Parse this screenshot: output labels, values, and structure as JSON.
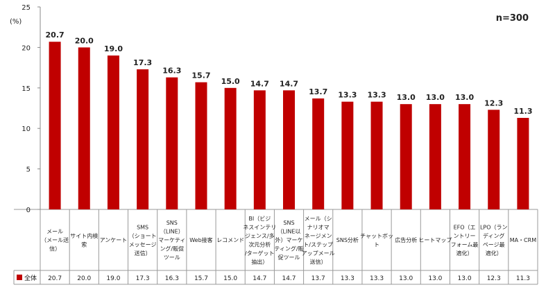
{
  "chart_data": {
    "type": "bar",
    "sample_note": "n=300",
    "y_unit": "(%)",
    "ylim": [
      0,
      25
    ],
    "y_ticks": [
      0,
      5,
      10,
      15,
      20,
      25
    ],
    "grid": false,
    "colors": {
      "bar": "#c00000",
      "axis": "#888888",
      "table_border": "#999999"
    },
    "categories": [
      [
        "メール",
        "（メール送",
        "信）"
      ],
      [
        "サイト内検",
        "索"
      ],
      [
        "アンケート"
      ],
      [
        "SMS",
        "（ショート",
        "メッセージ",
        "送信）"
      ],
      [
        "SNS",
        "（LINE）",
        "マーケティ",
        "ング/販促",
        "ツール"
      ],
      [
        "Web接客"
      ],
      [
        "レコメンド"
      ],
      [
        "BI（ビジ",
        "ネスインテリ",
        "ジェンス/多",
        "次元分析",
        "/ターゲット",
        "抽出）"
      ],
      [
        "SNS",
        "（LINE以",
        "外）マーケ",
        "ティング/販",
        "促ツール"
      ],
      [
        "メール（シ",
        "ナリオマ",
        "ネージメン",
        "ト/ステップ",
        "アップメール",
        "送信）"
      ],
      [
        "SNS分析"
      ],
      [
        "チャットボッ",
        "ト"
      ],
      [
        "広告分析"
      ],
      [
        "ヒートマップ"
      ],
      [
        "EFO（エ",
        "ントリー",
        "フォーム最",
        "適化）"
      ],
      [
        "LPO（ラン",
        "ディング",
        "ページ最",
        "適化）"
      ],
      [
        "MA・CRM"
      ]
    ],
    "series": [
      {
        "name": "全体",
        "values": [
          20.7,
          20.0,
          19.0,
          17.3,
          16.3,
          15.7,
          15.0,
          14.7,
          14.7,
          13.7,
          13.3,
          13.3,
          13.0,
          13.0,
          13.0,
          12.3,
          11.3
        ],
        "labels": [
          "20.7",
          "20.0",
          "19.0",
          "17.3",
          "16.3",
          "15.7",
          "15.0",
          "14.7",
          "14.7",
          "13.7",
          "13.3",
          "13.3",
          "13.0",
          "13.0",
          "13.0",
          "12.3",
          "11.3"
        ]
      }
    ]
  }
}
